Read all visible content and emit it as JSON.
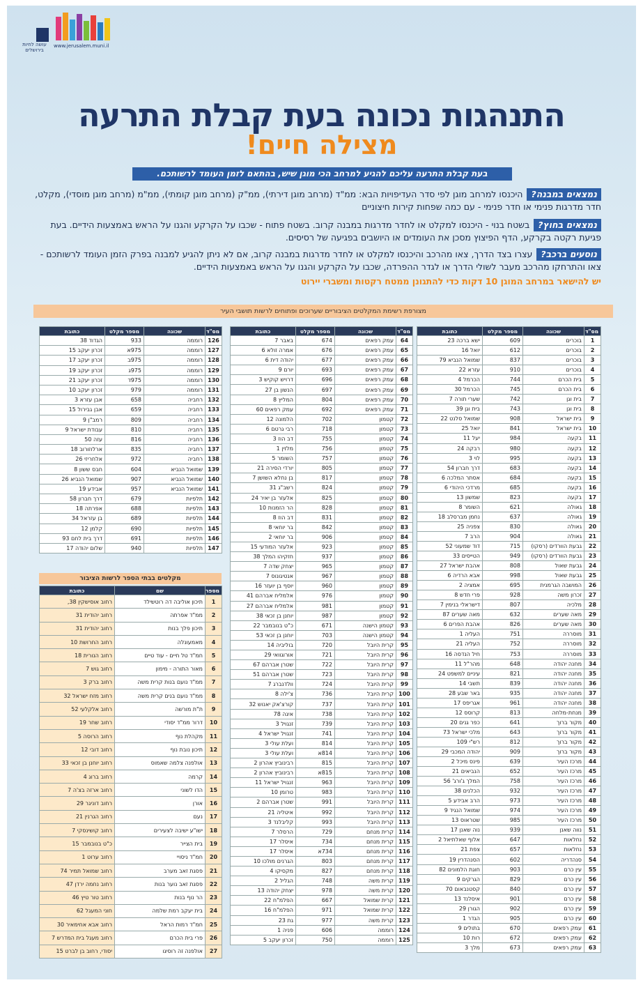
{
  "logo": {
    "url": "www.jerusalem.muni.il",
    "slogan": "עושה לחיות בירושלים"
  },
  "title": "התנהגות נכונה בעת קבלת התרעה",
  "subtitle": "מצילה חיים!",
  "banner": "בעת קבלת התרעה עליכם להגיע למרחב הכי מוגן שיש, בהתאם לזמן העומד לרשותכם.",
  "sections": [
    {
      "label": "נמצאים במבנה?",
      "text": "היכנסו למרחב מוגן לפי סדר העדיפויות הבא: ממ\"ד (מרחב מוגן דירתי), ממ\"ק (מרחב מוגן קומתי), ממ\"מ (מרחב מוגן מוסדי), מקלט, חדר מדרגות פנימי או חדר פנימי - עם כמה שפחות קירות חיצוניים"
    },
    {
      "label": "נמצאים בחוץ?",
      "text": "בשטח בנוי - היכנסו למקלט או לחדר מדרגות במבנה קרוב. בשטח פתוח - שכבו על הקרקע והגנו על הראש באמצעות הידיים. בעת פגיעת רקטה בקרקע, הדף הפיצוץ מסכן את העומדים או היושבים בפגיעה של רסיסים."
    },
    {
      "label": "נוסעים ברכב?",
      "text": "עצרו בצד הדרך, צאו מהרכב והיכנסו למקלט או לחדר מדרגות במבנה קרוב, אם לא ניתן להגיע למבנה בפרק הזמן העומד לרשותכם - צאו והתרחקו מהרכב מעבר לשולי הדרך או לגדר ההפרדה, שכבו על הקרקע והגנו על הראש באמצעות הידיים."
    }
  ],
  "note": "יש להישאר במרחב המוגן 10 דקות כדי להתגונן ממטח רקטות ומשברי יירוט",
  "shelters": {
    "title": "מצורפת רשימת המקלטים הציבוריים שערוכים ופתוחים לרשות תושבי העיר",
    "columns": [
      "מס\"ד",
      "שכונה",
      "מספר מקלט",
      "כתובת"
    ],
    "rows": [
      [
        1,
        "בוכרים",
        "609",
        "ישא ברכה 23"
      ],
      [
        2,
        "בוכרים",
        "612",
        "יואל 16"
      ],
      [
        3,
        "בוכרים",
        "837",
        "שמואל הנביא 79"
      ],
      [
        4,
        "בוכרים",
        "910",
        "עזרא 22"
      ],
      [
        5,
        "בית הכרם",
        "744",
        "הכרמל 4"
      ],
      [
        6,
        "בית הכרם",
        "745",
        "הכרמל 30"
      ],
      [
        7,
        "בית וגן",
        "742",
        "שערי תורה 7"
      ],
      [
        8,
        "בית וגן",
        "743",
        "בית וגן 39"
      ],
      [
        9,
        "בית ישראל",
        "908",
        "שמואל סלנט 22"
      ],
      [
        10,
        "בית ישראל",
        "841",
        "יואל 25"
      ],
      [
        11,
        "בקעה",
        "984",
        "יעל 11"
      ],
      [
        12,
        "בקעה",
        "980",
        "רבקה 24"
      ],
      [
        13,
        "בקעה",
        "995",
        "לוי 3"
      ],
      [
        14,
        "בקעה",
        "683",
        "דרך חברון 54"
      ],
      [
        15,
        "בקעה",
        "684",
        "אסתר המלכה 6"
      ],
      [
        16,
        "בקעה",
        "685",
        "מרדכי היהודי 6"
      ],
      [
        17,
        "בקעה",
        "823",
        "שמשון 13"
      ],
      [
        18,
        "גאולה",
        "621",
        "השומר 8"
      ],
      [
        19,
        "גאולה",
        "637",
        "נחמן מברסלב 18"
      ],
      [
        20,
        "גאולה",
        "830",
        "צפניה 25"
      ],
      [
        21,
        "גאולה",
        "904",
        "הרב 7"
      ],
      [
        22,
        "גבעת הוורדים (רסקו)",
        "715",
        "דוד שמעוני 52"
      ],
      [
        23,
        "גבעת הוורדים (רסקו)",
        "949",
        "הטייסים 33"
      ],
      [
        24,
        "גבעת שאול",
        "808",
        "אהבת ישראל 27"
      ],
      [
        25,
        "גבעת שאול",
        "998",
        "אבא הרדיה 6"
      ],
      [
        26,
        "המושבה הגרמנית",
        "695",
        "אמציה 2"
      ],
      [
        27,
        "זכרון משה",
        "928",
        "פרי חדש 8"
      ],
      [
        28,
        "מלכיה",
        "807",
        "דישראלי בנימין 7"
      ],
      [
        29,
        "מאה שערים",
        "632",
        "מאה שערים 87"
      ],
      [
        30,
        "מאה שערים",
        "826",
        "אהבת הפרים 6"
      ],
      [
        31,
        "מוסררה",
        "751",
        "העליה 1"
      ],
      [
        32,
        "מוסררה",
        "752",
        "העליה 21"
      ],
      [
        33,
        "מוסררה",
        "753",
        "חיל הנדסה 16"
      ],
      [
        34,
        "מחנה יהודה",
        "648",
        "מהר\"ל 11"
      ],
      [
        35,
        "מחנה יהודה",
        "821",
        "עיניים למשפט 24"
      ],
      [
        36,
        "מחנה יהודה",
        "839",
        "תשבי 14"
      ],
      [
        37,
        "מחנה יהודה",
        "935",
        "באר שבע 28"
      ],
      [
        38,
        "מחנה יהודה",
        "961",
        "אגריפס 17"
      ],
      [
        39,
        "מנחת-מלחה",
        "813",
        "קרוסס 12"
      ],
      [
        40,
        "מקור ברוך",
        "641",
        "כפר גנים 20"
      ],
      [
        41,
        "מקור ברוך",
        "643",
        "מלכי ישראל 73"
      ],
      [
        42,
        "מקור ברוך",
        "812",
        "רש\"י 109"
      ],
      [
        43,
        "מקור ברוך",
        "909",
        "יהודה המכבי 29"
      ],
      [
        44,
        "מרכז העיר",
        "639",
        "פינס מיכל 2"
      ],
      [
        45,
        "מרכז העיר",
        "652",
        "הנביאים 21"
      ],
      [
        46,
        "מרכז העיר",
        "758",
        "המלך ג'ורג' 56"
      ],
      [
        47,
        "מרכז העיר",
        "932",
        "הכלנים 38"
      ],
      [
        48,
        "מרכז העיר",
        "973",
        "הרב אבידע 5"
      ],
      [
        49,
        "מרכז העיר",
        "974",
        "שמואל הנגיד 9"
      ],
      [
        50,
        "מרכז העיר",
        "985",
        "שטראוס 13"
      ],
      [
        51,
        "נווה שאנן",
        "939",
        "נוה שאנן 17"
      ],
      [
        52,
        "נחלאות",
        "647",
        "אלוף שאלתיאל 2"
      ],
      [
        53,
        "נחלאות",
        "657",
        "צפת 21"
      ],
      [
        54,
        "סנהדריה",
        "602",
        "הסנהדרין 19"
      ],
      [
        55,
        "עין כרם",
        "903",
        "חוגת הלמונים 82"
      ],
      [
        56,
        "עין כרם",
        "829",
        "הגרקים 9"
      ],
      [
        57,
        "עין כרם",
        "840",
        "קסטנבאום 70"
      ],
      [
        58,
        "עין כרם",
        "901",
        "איסלנד 13"
      ],
      [
        59,
        "עין כרם",
        "902",
        "הגורן 29"
      ],
      [
        60,
        "עין כרם",
        "905",
        "הגדר 1"
      ],
      [
        61,
        "עמק רפאים",
        "670",
        "בתולים 9"
      ],
      [
        62,
        "עמק רפאים",
        "672",
        "רות 10"
      ],
      [
        63,
        "עמק רפאים",
        "673",
        "מלך 3"
      ],
      [
        64,
        "עמק רפאים",
        "674",
        "באבר 7"
      ],
      [
        65,
        "עמק רפאים",
        "676",
        "אמרה זולא 6"
      ],
      [
        66,
        "עמק רפאים",
        "677",
        "יהודה דית 6"
      ],
      [
        67,
        "עמק רפאים",
        "693",
        "יורם 9"
      ],
      [
        68,
        "עמק רפאים",
        "696",
        "דרויש קוקיש 3"
      ],
      [
        69,
        "עמק רפאים",
        "697",
        "הנשון בן 27"
      ],
      [
        70,
        "עמק רפאים",
        "804",
        "המליץ 8"
      ],
      [
        71,
        "עמק רפאים",
        "692",
        "עמק רפאים 60"
      ],
      [
        72,
        "קטמון",
        "702",
        "הלמונה 12"
      ],
      [
        73,
        "קטמון",
        "718",
        "רבי גרטם 6"
      ],
      [
        74,
        "קטמון",
        "755",
        "דב הוז 3"
      ],
      [
        75,
        "קטמון",
        "756",
        "מלזין 1"
      ],
      [
        76,
        "קטמון",
        "757",
        "השומר 5"
      ],
      [
        77,
        "קטמון",
        "805",
        "יורדי הסירה 21"
      ],
      [
        78,
        "קטמון",
        "817",
        "בן נחלא השושן 7"
      ],
      [
        79,
        "קטמון",
        "824",
        "רשב\"ג 31"
      ],
      [
        80,
        "קטמון",
        "825",
        "אלעזר בן יאיר 24"
      ],
      [
        81,
        "קטמון",
        "828",
        "הר הזמנות 10"
      ],
      [
        82,
        "קטמון",
        "831",
        "דב הוז 8"
      ],
      [
        83,
        "קטמון",
        "842",
        "בר יוחאי 8"
      ],
      [
        84,
        "קטמון",
        "906",
        "בר יוחאי 2"
      ],
      [
        85,
        "קטמון",
        "923",
        "אלעזר המודעי 15"
      ],
      [
        86,
        "קטמון",
        "937",
        "חזקיהו המלך 38"
      ],
      [
        87,
        "קטמון",
        "965",
        "יצחק שדה 7"
      ],
      [
        88,
        "קטמון",
        "967",
        "אנטיגונוס 7"
      ],
      [
        89,
        "קטמון",
        "960",
        "יוסף בן יועזר 16"
      ],
      [
        90,
        "קטמון",
        "976",
        "אלמליח אברהם 41"
      ],
      [
        91,
        "קטמון",
        "981",
        "אלמליח אברהם 27"
      ],
      [
        92,
        "קטמון",
        "987",
        "יוחנן בן זכאי 38"
      ],
      [
        93,
        "קטמון הישנה",
        "671",
        "כ\"ט בנובמבר 22"
      ],
      [
        94,
        "קטמון הישנה",
        "703",
        "יוחנן בן זכאי 53"
      ],
      [
        95,
        "קרית היובל",
        "720",
        "בוליביה 14"
      ],
      [
        96,
        "קרית היובל",
        "721",
        "אורוגוואי 29"
      ],
      [
        97,
        "קרית היובל",
        "722",
        "שטרן אברהם 67"
      ],
      [
        98,
        "קרית היובל",
        "723",
        "שטרן אברהם 51"
      ],
      [
        99,
        "קרית היובל",
        "724",
        "וולדנברג 7"
      ],
      [
        100,
        "קרית היובל",
        "736",
        "צ'ילה 8"
      ],
      [
        101,
        "קרית היובל",
        "737",
        "קורצ'אק יאנוש 32"
      ],
      [
        102,
        "קרית היובל",
        "738",
        "איגה 78"
      ],
      [
        103,
        "קרית היובל",
        "739",
        "זנגויל 3"
      ],
      [
        104,
        "קרית היובל",
        "741",
        "זנגויל ישראל 4"
      ],
      [
        105,
        "קרית היובל",
        "814",
        "ועלת עולי 3"
      ],
      [
        106,
        "קרית היובל",
        "814א",
        "ועלת עולי 3"
      ],
      [
        107,
        "קרית היובל",
        "815",
        "רבינוביץ אהרון 2"
      ],
      [
        108,
        "קרית היובל",
        "815א",
        "רבינוביץ אהרון 2"
      ],
      [
        109,
        "קרית היובל",
        "963",
        "זנגויל ישראל 11"
      ],
      [
        110,
        "קרית היובל",
        "983",
        "טרומן 10"
      ],
      [
        111,
        "קרית היובל",
        "991",
        "שטרן אברהם 2"
      ],
      [
        112,
        "קרית היובל",
        "992",
        "איטליה 21"
      ],
      [
        113,
        "קרית היובל",
        "993",
        "קליבלנד 3"
      ],
      [
        114,
        "קרית מנחם",
        "729",
        "הרסלר 7"
      ],
      [
        115,
        "קרית מנחם",
        "734",
        "איסלר 17"
      ],
      [
        116,
        "קרית מנחם",
        "734א",
        "איסלר 17"
      ],
      [
        117,
        "קרית מנחם",
        "803",
        "הגרנים מולכו 10"
      ],
      [
        118,
        "קרית מנחם",
        "827",
        "מקסיקו 4"
      ],
      [
        119,
        "קרית משה",
        "748",
        "הגליל 2"
      ],
      [
        120,
        "קרית משה",
        "978",
        "יצחק יהודה 13"
      ],
      [
        121,
        "קרית שמואל",
        "667",
        "הפלמ\"ח 22"
      ],
      [
        122,
        "קרית שמואל",
        "971",
        "הפלמ\"ח 16"
      ],
      [
        123,
        "קרית משה",
        "977",
        "גת 23"
      ],
      [
        124,
        "רוממה",
        "606",
        "פניה 1"
      ],
      [
        125,
        "רוממה",
        "750",
        "זכרון יעקב 5"
      ],
      [
        126,
        "רוממה",
        "933",
        "הגדוד 38"
      ],
      [
        127,
        "רוממה",
        "975א",
        "זכרון יעקב 15"
      ],
      [
        128,
        "רוממה",
        "975ב",
        "זכרון יעקב 17"
      ],
      [
        129,
        "רוממה",
        "975ג",
        "זכרון יעקב 19"
      ],
      [
        130,
        "רוממה",
        "975ד",
        "זכרון יעקב 21"
      ],
      [
        131,
        "רוממה",
        "979",
        "זכרון יעקב 10"
      ],
      [
        132,
        "רחביה",
        "658",
        "אבן עזרא 3"
      ],
      [
        133,
        "רחביה",
        "659",
        "אבן גבירול 15"
      ],
      [
        134,
        "רחביה",
        "809",
        "רמב\"ן 9"
      ],
      [
        135,
        "רחביה",
        "810",
        "עבודת ישראל 9"
      ],
      [
        136,
        "רחביה",
        "816",
        "עזה 50"
      ],
      [
        137,
        "רחביה",
        "835",
        "ארלוזורוב 18"
      ],
      [
        138,
        "רחביה",
        "972",
        "אלחריזי 26"
      ],
      [
        139,
        "שמואל הנביא",
        "604",
        "חבס ששון 8"
      ],
      [
        140,
        "שמואל הנביא",
        "907",
        "שמואל הנביא 26"
      ],
      [
        141,
        "שמואל הנביא",
        "957",
        "אבידע 19"
      ],
      [
        142,
        "תלפיות",
        "679",
        "דרך חברון 58"
      ],
      [
        143,
        "תלפיות",
        "688",
        "אפרתה 18"
      ],
      [
        144,
        "תלפיות",
        "689",
        "בן עזראל 34"
      ],
      [
        145,
        "תלפיות",
        "690",
        "קלמן 12"
      ],
      [
        146,
        "תלפיות",
        "691",
        "דרך בית לחם 93"
      ],
      [
        147,
        "תלפיות",
        "940",
        "שלום יהודה 17"
      ]
    ]
  },
  "schools": {
    "title": "מקלטים בבתי הספר לרשות הציבור",
    "columns": [
      "מספר",
      "שם",
      "כתובת"
    ],
    "rows": [
      [
        1,
        "תיכון אוליבה דה רוטשילד",
        "רחוב אוסישקין 38,"
      ],
      [
        2,
        "ממ\"ד אפרתה",
        "רחוב יהודית 31"
      ],
      [
        3,
        "תיכון פלך בנות",
        "רחוב יהודית 31"
      ],
      [
        4,
        "מאמעונלה",
        "רחוב החרושת 10"
      ],
      [
        5,
        "חמ\"ד טל חיים - עוד טיים",
        "רחוב הנורית 18"
      ],
      [
        6,
        "מאור התורה - מימון",
        "רחוב גוש 7"
      ],
      [
        7,
        "ממ\"ד נועם בנות קרית משה",
        "רחוב ברק 3"
      ],
      [
        8,
        "ממ\"ד נועם בנים קרית משה",
        "רחוב מזח ישראל 32"
      ],
      [
        9,
        "ת\"ת מורשה",
        "רחוב אלקלעי 52"
      ],
      [
        10,
        "דרור ממ\"ד יסודי",
        "רחוב שחר 19"
      ],
      [
        11,
        "מקהלת נוף",
        "רחוב הרוסה 5"
      ],
      [
        12,
        "תיכון נובת נוף",
        "רחוב דובי 12"
      ],
      [
        13,
        "אולפנה צלמה שאמוס",
        "רחוב יוחנן בן זכאי 33"
      ],
      [
        14,
        "קרמה",
        "רחוב ברוג 4"
      ],
      [
        15,
        "הדו לשוני",
        "רחוב ארזה בצ'ה 7"
      ],
      [
        16,
        "אורן",
        "רחוב דוניגר 29"
      ],
      [
        17,
        "נעם",
        "רחוב הגרנין 21"
      ],
      [
        18,
        "ישו\"ע ישיבה לצעירים",
        "רחוב קושינסקי 7"
      ],
      [
        19,
        "בית הצייר",
        "כ\"ט בנובמבר 15"
      ],
      [
        20,
        "חמ\"ד ניסויי",
        "רחוב ערוט 1"
      ],
      [
        21,
        "פסגת זאב מערב",
        "רחוב שמואל תמיר 74"
      ],
      [
        22,
        "פסגת זאב נוער בנות",
        "רחוב נחמה ירדן 47"
      ],
      [
        23,
        "הר נוף בנות",
        "רחוב טור טיץ 46"
      ],
      [
        24,
        "בית יעקב רמת שלמה",
        "חוני המעגל 62"
      ],
      [
        25,
        "חמ\"ד רמות הראל",
        "רחוב אבא אחימאיר 30"
      ],
      [
        26,
        "פרי בית הכרם",
        "רחוב מעגל בית המדרש 7"
      ],
      [
        27,
        "אולפנה זה רוסיגו",
        "יסודי, רחוב בן לברט 15"
      ]
    ]
  }
}
